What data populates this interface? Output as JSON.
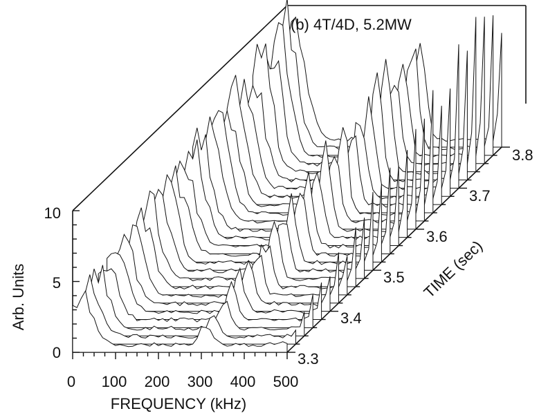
{
  "chart_data": {
    "type": "waterfall-3d",
    "panel_label": "(b) 4T/4D, 5.2MW",
    "xlabel": "FREQUENCY (kHz)",
    "ylabel": "Arb. Units",
    "zlabel": "TIME (sec)",
    "x_ticks": [
      "0",
      "100",
      "200",
      "300",
      "400",
      "500"
    ],
    "y_ticks": [
      "0",
      "5",
      "10"
    ],
    "time_ticks": [
      "3.3",
      "3.4",
      "3.5",
      "3.6",
      "3.7",
      "3.8"
    ],
    "xlim": [
      0,
      500
    ],
    "ylim": [
      0,
      10
    ],
    "time_range": [
      3.3,
      3.8
    ],
    "features": [
      {
        "description_free": true,
        "frequency_khz": 20,
        "peak_arb_units_start": 3.5,
        "peak_arb_units_end": 9.0
      },
      {
        "description_free": true,
        "frequency_khz": 310,
        "peak_arb_units_start": 1.5,
        "peak_arb_units_end": 8.0
      },
      {
        "description_free": true,
        "frequency_khz": 500,
        "peak_arb_units_start": 0.2,
        "peak_arb_units_end": 10.0
      }
    ]
  }
}
